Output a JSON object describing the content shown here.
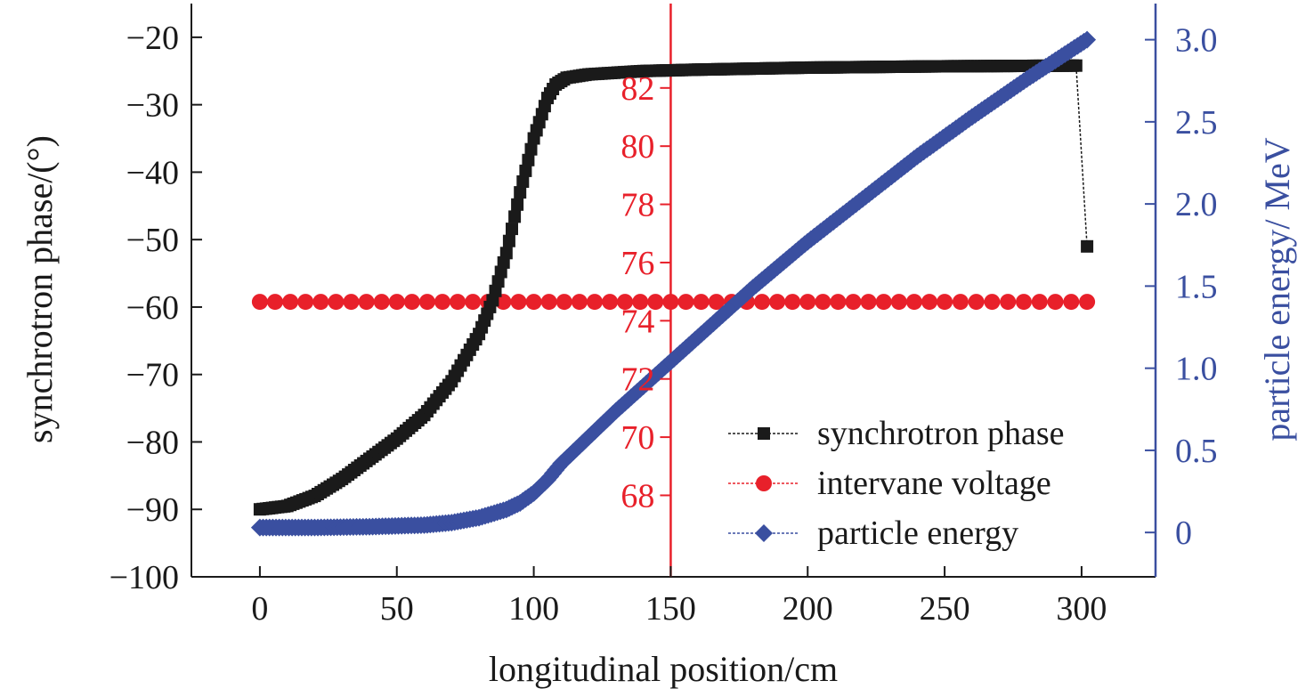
{
  "chart_data": {
    "type": "line",
    "xlabel": "longitudinal position/cm",
    "x_ticks": [
      "0",
      "50",
      "100",
      "150",
      "200",
      "250",
      "300"
    ],
    "xlim": [
      -25,
      327
    ],
    "axes": {
      "left": {
        "label": "synchrotron phase/(°)",
        "ylim": [
          -100,
          -15
        ],
        "ticks": [
          "−20",
          "−30",
          "−40",
          "−50",
          "−60",
          "−70",
          "−80",
          "−90",
          "−100"
        ],
        "tick_values": [
          -20,
          -30,
          -40,
          -50,
          -60,
          -70,
          -80,
          -90,
          -100
        ],
        "color": "#1a1a1a"
      },
      "middle": {
        "ylim": [
          65.2,
          84.9
        ],
        "ticks": [
          "82",
          "80",
          "78",
          "76",
          "74",
          "72",
          "70",
          "68"
        ],
        "tick_values": [
          82,
          80,
          78,
          76,
          74,
          72,
          70,
          68
        ],
        "position_x": 150,
        "color": "#e8202a"
      },
      "right": {
        "label": "particle energy/ MeV",
        "ylim": [
          -0.27,
          3.22
        ],
        "ticks": [
          "3.0",
          "2.5",
          "2.0",
          "1.5",
          "1.0",
          "0.5",
          "0"
        ],
        "tick_values": [
          3.0,
          2.5,
          2.0,
          1.5,
          1.0,
          0.5,
          0
        ],
        "color": "#3a4fa0"
      }
    },
    "series": [
      {
        "name": "synchrotron phase",
        "axis": "left",
        "color": "#1a1a1a",
        "marker": "square",
        "x": [
          0,
          10,
          20,
          30,
          40,
          50,
          60,
          70,
          80,
          85,
          90,
          95,
          100,
          105,
          108,
          112,
          120,
          140,
          160,
          200,
          250,
          298,
          302
        ],
        "y": [
          -90,
          -89.5,
          -88,
          -85.5,
          -82.5,
          -79.5,
          -76,
          -71,
          -64,
          -59,
          -52,
          -43,
          -35,
          -29,
          -27,
          -26,
          -25.5,
          -25,
          -24.8,
          -24.5,
          -24.3,
          -24.2,
          -51
        ]
      },
      {
        "name": "intervane voltage",
        "axis": "middle",
        "color": "#e8202a",
        "marker": "circle",
        "x": [
          0,
          50,
          100,
          150,
          200,
          250,
          302
        ],
        "y": [
          74.65,
          74.65,
          74.65,
          74.65,
          74.65,
          74.65,
          74.65
        ]
      },
      {
        "name": "particle energy",
        "axis": "right",
        "color": "#3a4fa0",
        "marker": "diamond",
        "x": [
          0,
          20,
          40,
          60,
          70,
          80,
          90,
          95,
          100,
          105,
          110,
          120,
          130,
          140,
          150,
          160,
          170,
          180,
          190,
          200,
          220,
          240,
          260,
          280,
          302
        ],
        "y": [
          0.03,
          0.03,
          0.035,
          0.045,
          0.06,
          0.09,
          0.14,
          0.18,
          0.24,
          0.32,
          0.42,
          0.58,
          0.74,
          0.89,
          1.04,
          1.19,
          1.34,
          1.49,
          1.63,
          1.77,
          2.03,
          2.29,
          2.53,
          2.76,
          3.0
        ]
      }
    ],
    "legend": {
      "placement": "bottom-right",
      "entries": [
        "synchrotron phase",
        "intervane voltage",
        "particle energy"
      ]
    }
  }
}
